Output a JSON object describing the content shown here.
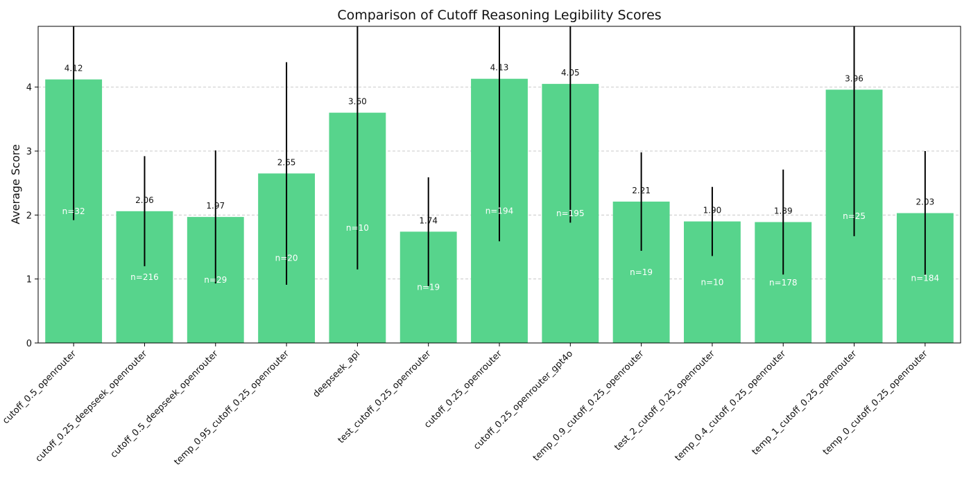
{
  "chart_data": {
    "type": "bar",
    "title": "Comparison of Cutoff Reasoning Legibility Scores",
    "xlabel": "",
    "ylabel": "Average Score",
    "ylim": [
      0,
      4.95
    ],
    "yticks": [
      0,
      1,
      2,
      3,
      4
    ],
    "grid": true,
    "bar_color": "#57d48c",
    "categories": [
      "cutoff_0.5_openrouter",
      "cutoff_0.25_deepseek_openrouter",
      "cutoff_0.5_deepseek_openrouter",
      "temp_0.95_cutoff_0.25_openrouter",
      "deepseek_api",
      "test_cutoff_0.25_openrouter",
      "cutoff_0.25_openrouter",
      "cutoff_0.25_openrouter_gpt4o",
      "temp_0.9_cutoff_0.25_openrouter",
      "test_2_cutoff_0.25_openrouter",
      "temp_0.4_cutoff_0.25_openrouter",
      "temp_1_cutoff_0.25_openrouter",
      "temp_0_cutoff_0.25_openrouter"
    ],
    "values": [
      4.12,
      2.06,
      1.97,
      2.65,
      3.6,
      1.74,
      4.13,
      4.05,
      2.21,
      1.9,
      1.89,
      3.96,
      2.03
    ],
    "value_labels": [
      "4.12",
      "2.06",
      "1.97",
      "2.65",
      "3.60",
      "1.74",
      "4.13",
      "4.05",
      "2.21",
      "1.90",
      "1.89",
      "3.96",
      "2.03"
    ],
    "errors": [
      2.2,
      0.86,
      1.04,
      1.74,
      2.45,
      0.85,
      2.54,
      2.17,
      0.77,
      0.54,
      0.82,
      2.29,
      0.97
    ],
    "counts": [
      "n=32",
      "n=216",
      "n=29",
      "n=20",
      "n=10",
      "n=19",
      "n=194",
      "n=195",
      "n=19",
      "n=10",
      "n=178",
      "n=25",
      "n=184"
    ]
  }
}
